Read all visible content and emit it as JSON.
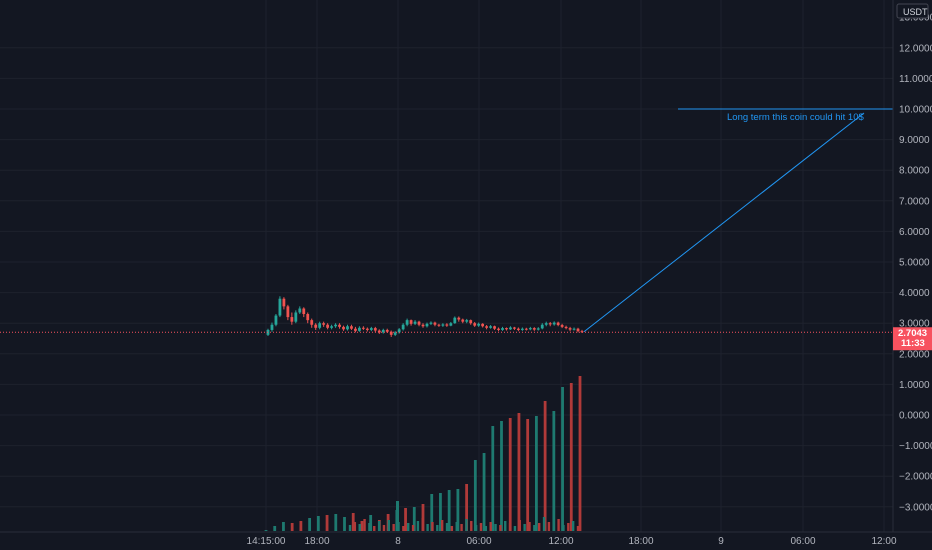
{
  "chart_data": {
    "type": "candlestick",
    "currency": "USDT",
    "y_axis_ticks": [
      "12.0000",
      "11.0000",
      "10.0000",
      "9.0000",
      "8.0000",
      "7.0000",
      "6.0000",
      "5.0000",
      "4.0000",
      "3.0000",
      "2.0000",
      "1.0000",
      "0.0000",
      "−1.0000",
      "−2.0000",
      "−3.0000"
    ],
    "y_tick_values": [
      12,
      11,
      10,
      9,
      8,
      7,
      6,
      5,
      4,
      3,
      2,
      1,
      0,
      -1,
      -2,
      -3
    ],
    "ylim": [
      -3.65,
      13.1
    ],
    "x_axis_ticks": [
      "14:15:00",
      "18:00",
      "8",
      "06:00",
      "12:00",
      "18:00",
      "9",
      "06:00",
      "12:00"
    ],
    "last_price": {
      "value": "2.7043",
      "countdown": "11:33",
      "color": "#f7525f"
    },
    "annotation": {
      "text": "Long term this coin could hit 10$",
      "line_color": "#2196f3",
      "target_price": 10.0,
      "trend_start_price": 2.72
    },
    "colors": {
      "up": "#26a69a",
      "down": "#ef5350",
      "vol_up": "#1e7a70",
      "vol_down": "#b03a39"
    },
    "price_candles": [
      [
        2.62,
        2.78,
        2.58,
        2.82
      ],
      [
        2.78,
        2.95,
        2.72,
        3.02
      ],
      [
        2.95,
        3.25,
        2.9,
        3.3
      ],
      [
        3.25,
        3.8,
        3.2,
        3.88
      ],
      [
        3.8,
        3.55,
        3.45,
        3.85
      ],
      [
        3.55,
        3.2,
        3.1,
        3.6
      ],
      [
        3.2,
        3.05,
        2.95,
        3.35
      ],
      [
        3.05,
        3.35,
        3.0,
        3.42
      ],
      [
        3.35,
        3.48,
        3.3,
        3.55
      ],
      [
        3.48,
        3.3,
        3.2,
        3.52
      ],
      [
        3.3,
        3.1,
        3.0,
        3.35
      ],
      [
        3.1,
        2.95,
        2.85,
        3.15
      ],
      [
        2.95,
        2.85,
        2.78,
        3.0
      ],
      [
        2.85,
        3.0,
        2.8,
        3.05
      ],
      [
        3.0,
        2.95,
        2.88,
        3.05
      ],
      [
        2.95,
        2.85,
        2.8,
        3.0
      ],
      [
        2.85,
        2.9,
        2.8,
        2.95
      ],
      [
        2.9,
        2.95,
        2.85,
        3.0
      ],
      [
        2.95,
        2.88,
        2.82,
        3.0
      ],
      [
        2.88,
        2.8,
        2.75,
        2.92
      ],
      [
        2.8,
        2.9,
        2.76,
        2.95
      ],
      [
        2.9,
        2.82,
        2.78,
        2.95
      ],
      [
        2.82,
        2.75,
        2.7,
        2.88
      ],
      [
        2.75,
        2.85,
        2.72,
        2.9
      ],
      [
        2.85,
        2.82,
        2.78,
        2.9
      ],
      [
        2.82,
        2.78,
        2.73,
        2.86
      ],
      [
        2.78,
        2.84,
        2.74,
        2.88
      ],
      [
        2.84,
        2.76,
        2.7,
        2.88
      ],
      [
        2.76,
        2.7,
        2.65,
        2.8
      ],
      [
        2.7,
        2.78,
        2.66,
        2.82
      ],
      [
        2.78,
        2.72,
        2.68,
        2.82
      ],
      [
        2.72,
        2.62,
        2.55,
        2.76
      ],
      [
        2.62,
        2.7,
        2.58,
        2.74
      ],
      [
        2.7,
        2.8,
        2.66,
        2.84
      ],
      [
        2.8,
        2.95,
        2.76,
        3.0
      ],
      [
        2.95,
        3.1,
        2.9,
        3.15
      ],
      [
        3.1,
        2.98,
        2.92,
        3.12
      ],
      [
        2.98,
        3.05,
        2.94,
        3.1
      ],
      [
        3.05,
        2.95,
        2.9,
        3.08
      ],
      [
        2.95,
        2.9,
        2.85,
        3.0
      ],
      [
        2.9,
        2.98,
        2.86,
        3.02
      ],
      [
        2.98,
        3.02,
        2.94,
        3.06
      ],
      [
        3.02,
        2.95,
        2.9,
        3.05
      ],
      [
        2.95,
        2.92,
        2.88,
        2.98
      ],
      [
        2.92,
        2.96,
        2.88,
        3.0
      ],
      [
        2.96,
        2.92,
        2.88,
        3.0
      ],
      [
        2.92,
        3.0,
        2.9,
        3.04
      ],
      [
        3.0,
        3.18,
        2.98,
        3.22
      ],
      [
        3.18,
        3.12,
        3.05,
        3.22
      ],
      [
        3.12,
        3.05,
        3.0,
        3.15
      ],
      [
        3.05,
        3.1,
        3.0,
        3.14
      ],
      [
        3.1,
        3.0,
        2.95,
        3.12
      ],
      [
        3.0,
        2.92,
        2.88,
        3.04
      ],
      [
        2.92,
        2.98,
        2.88,
        3.02
      ],
      [
        2.98,
        2.9,
        2.86,
        3.0
      ],
      [
        2.9,
        2.85,
        2.8,
        2.94
      ],
      [
        2.85,
        2.9,
        2.82,
        2.94
      ],
      [
        2.9,
        2.82,
        2.78,
        2.92
      ],
      [
        2.82,
        2.78,
        2.74,
        2.86
      ],
      [
        2.78,
        2.84,
        2.75,
        2.88
      ],
      [
        2.84,
        2.8,
        2.76,
        2.86
      ],
      [
        2.8,
        2.86,
        2.78,
        2.9
      ],
      [
        2.86,
        2.82,
        2.78,
        2.88
      ],
      [
        2.82,
        2.78,
        2.74,
        2.86
      ],
      [
        2.78,
        2.82,
        2.75,
        2.86
      ],
      [
        2.82,
        2.8,
        2.76,
        2.85
      ],
      [
        2.8,
        2.84,
        2.77,
        2.88
      ],
      [
        2.84,
        2.79,
        2.75,
        2.87
      ],
      [
        2.79,
        2.83,
        2.76,
        2.87
      ],
      [
        2.83,
        2.95,
        2.8,
        3.0
      ],
      [
        2.95,
        3.0,
        2.9,
        3.05
      ],
      [
        3.0,
        2.96,
        2.9,
        3.04
      ],
      [
        2.96,
        3.02,
        2.92,
        3.06
      ],
      [
        3.02,
        2.94,
        2.9,
        3.05
      ],
      [
        2.94,
        2.88,
        2.84,
        2.98
      ],
      [
        2.88,
        2.84,
        2.8,
        2.92
      ],
      [
        2.84,
        2.79,
        2.74,
        2.88
      ],
      [
        2.79,
        2.82,
        2.76,
        2.86
      ],
      [
        2.82,
        2.74,
        2.7,
        2.85
      ],
      [
        2.74,
        2.72,
        2.68,
        2.78
      ]
    ],
    "volume_bars": [
      [
        1,
        "up"
      ],
      [
        5,
        "up"
      ],
      [
        9,
        "up"
      ],
      [
        8,
        "down"
      ],
      [
        10,
        "down"
      ],
      [
        13,
        "up"
      ],
      [
        15,
        "up"
      ],
      [
        16,
        "down"
      ],
      [
        17,
        "up"
      ],
      [
        14,
        "up"
      ],
      [
        18,
        "down"
      ],
      [
        10,
        "down"
      ],
      [
        16,
        "up"
      ],
      [
        11,
        "down"
      ],
      [
        17,
        "down"
      ],
      [
        21,
        "up"
      ],
      [
        23,
        "down"
      ],
      [
        24,
        "up"
      ],
      [
        27,
        "down"
      ],
      [
        37,
        "up"
      ],
      [
        38,
        "up"
      ],
      [
        41,
        "up"
      ],
      [
        42,
        "up"
      ],
      [
        47,
        "down"
      ],
      [
        71,
        "up"
      ],
      [
        78,
        "up"
      ],
      [
        105,
        "up"
      ],
      [
        110,
        "up"
      ],
      [
        113,
        "down"
      ],
      [
        118,
        "down"
      ],
      [
        112,
        "down"
      ],
      [
        115,
        "up"
      ],
      [
        130,
        "down"
      ],
      [
        120,
        "up"
      ],
      [
        144,
        "up"
      ],
      [
        148,
        "down"
      ],
      [
        155,
        "down"
      ]
    ]
  }
}
